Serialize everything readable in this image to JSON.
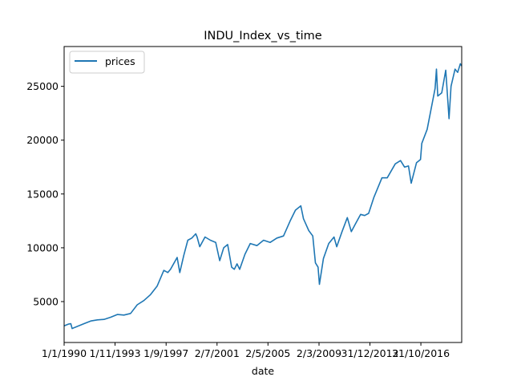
{
  "chart_data": {
    "type": "line",
    "title": "INDU_Index_vs_time",
    "xlabel": "date",
    "ylabel": "",
    "x_tick_labels": [
      "1/1/1990",
      "1/11/1993",
      "1/9/1997",
      "2/7/2001",
      "2/5/2005",
      "2/3/2009",
      "31/12/2012",
      "31/10/2016"
    ],
    "y_tick_labels": [
      "5000",
      "10000",
      "15000",
      "20000",
      "25000"
    ],
    "y_ticks": [
      5000,
      10000,
      15000,
      20000,
      25000
    ],
    "x_ticks": [
      1990.0,
      1993.83,
      1997.67,
      2001.5,
      2005.33,
      2009.17,
      2013.0,
      2016.83
    ],
    "xlim": [
      1990.0,
      2019.9
    ],
    "ylim": [
      1200,
      28700
    ],
    "grid": false,
    "legend_position": "top-left",
    "series": [
      {
        "name": "prices",
        "color": "#1f77b4",
        "x": [
          1990.0,
          1990.3,
          1990.5,
          1990.6,
          1990.8,
          1991.0,
          1991.5,
          1992.0,
          1992.5,
          1993.0,
          1993.5,
          1994.0,
          1994.5,
          1995.0,
          1995.5,
          1996.0,
          1996.5,
          1997.0,
          1997.5,
          1997.8,
          1998.0,
          1998.5,
          1998.7,
          1999.0,
          1999.3,
          1999.6,
          1999.9,
          2000.0,
          2000.2,
          2000.6,
          2001.0,
          2001.4,
          2001.7,
          2002.0,
          2002.3,
          2002.6,
          2002.8,
          2003.0,
          2003.2,
          2003.6,
          2004.0,
          2004.5,
          2005.0,
          2005.5,
          2006.0,
          2006.5,
          2007.0,
          2007.4,
          2007.8,
          2008.0,
          2008.4,
          2008.7,
          2008.9,
          2009.1,
          2009.2,
          2009.5,
          2009.9,
          2010.3,
          2010.5,
          2010.9,
          2011.3,
          2011.6,
          2011.9,
          2012.3,
          2012.6,
          2012.9,
          2013.3,
          2013.9,
          2014.3,
          2014.9,
          2015.3,
          2015.6,
          2015.9,
          2016.1,
          2016.5,
          2016.8,
          2016.9,
          2017.3,
          2017.9,
          2018.0,
          2018.1,
          2018.4,
          2018.7,
          2018.95,
          2019.1,
          2019.4,
          2019.6,
          2019.8,
          2019.9
        ],
        "values": [
          2750,
          2900,
          2950,
          2500,
          2600,
          2700,
          2950,
          3200,
          3300,
          3350,
          3550,
          3800,
          3750,
          3900,
          4700,
          5100,
          5650,
          6450,
          7900,
          7700,
          8000,
          9100,
          7700,
          9300,
          10700,
          10900,
          11300,
          11000,
          10100,
          11000,
          10700,
          10500,
          8800,
          10000,
          10300,
          8200,
          8000,
          8500,
          8000,
          9400,
          10400,
          10200,
          10700,
          10500,
          10900,
          11100,
          12500,
          13500,
          13900,
          12700,
          11600,
          11100,
          8600,
          8200,
          6600,
          9000,
          10400,
          11000,
          10100,
          11500,
          12800,
          11500,
          12200,
          13100,
          13000,
          13200,
          14700,
          16500,
          16500,
          17800,
          18100,
          17500,
          17600,
          16000,
          17900,
          18200,
          19700,
          21000,
          24800,
          26600,
          24100,
          24400,
          26500,
          22000,
          25000,
          26600,
          26300,
          27100,
          26900
        ]
      }
    ]
  }
}
